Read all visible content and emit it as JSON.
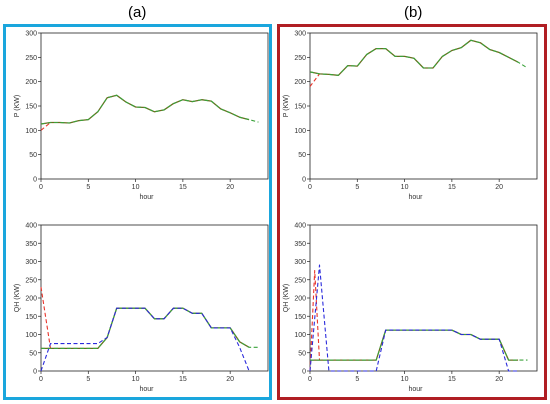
{
  "figure": {
    "panels": [
      {
        "label": "(a)",
        "frame_color": "#1aa6dd"
      },
      {
        "label": "(b)",
        "frame_color": "#b01e23"
      }
    ]
  },
  "colors": {
    "olive": "#6b6b1e",
    "red": "#e8332a",
    "green": "#3aa23a",
    "blue": "#2b2bdc"
  },
  "chart_data": [
    {
      "id": "a-top",
      "type": "line",
      "panel": "(a)",
      "xlabel": "hour",
      "ylabel": "P (KW)",
      "xlim": [
        0,
        24
      ],
      "ylim": [
        0,
        300
      ],
      "xticks": [
        0,
        5,
        10,
        15,
        20
      ],
      "yticks": [
        0,
        50,
        100,
        150,
        200,
        250,
        300
      ],
      "series": [
        {
          "style": "solid",
          "color": "olive",
          "x": [
            0,
            1,
            2,
            3,
            4,
            5,
            6,
            7,
            8,
            9,
            10,
            11,
            12,
            13,
            14,
            15,
            16,
            17,
            18,
            19,
            20,
            21,
            22
          ],
          "y": [
            113,
            116,
            116,
            115,
            120,
            122,
            138,
            167,
            172,
            158,
            148,
            147,
            138,
            142,
            155,
            163,
            159,
            163,
            160,
            144,
            136,
            127,
            122
          ]
        },
        {
          "style": "dashed",
          "color": "red",
          "x": [
            0,
            1
          ],
          "y": [
            100,
            116
          ]
        },
        {
          "style": "dashed",
          "color": "green",
          "x": [
            0,
            1,
            2,
            3,
            4,
            5,
            6,
            7,
            8,
            9,
            10,
            11,
            12,
            13,
            14,
            15,
            16,
            17,
            18,
            19,
            20,
            21,
            22,
            23
          ],
          "y": [
            113,
            116,
            116,
            115,
            120,
            122,
            138,
            167,
            172,
            158,
            148,
            147,
            138,
            142,
            155,
            163,
            159,
            163,
            160,
            144,
            136,
            127,
            122,
            117
          ]
        }
      ]
    },
    {
      "id": "a-bottom",
      "type": "line",
      "panel": "(a)",
      "xlabel": "hour",
      "ylabel": "QH (KW)",
      "xlim": [
        0,
        24
      ],
      "ylim": [
        0,
        400
      ],
      "xticks": [
        0,
        5,
        10,
        15,
        20
      ],
      "yticks": [
        0,
        50,
        100,
        150,
        200,
        250,
        300,
        350,
        400
      ],
      "series": [
        {
          "style": "solid",
          "color": "olive",
          "x": [
            0,
            1,
            2,
            3,
            4,
            5,
            6,
            7,
            8,
            9,
            10,
            11,
            12,
            13,
            14,
            15,
            16,
            17,
            18,
            19,
            20,
            21,
            22
          ],
          "y": [
            62,
            62,
            62,
            62,
            62,
            62,
            62,
            92,
            172,
            172,
            172,
            172,
            143,
            143,
            172,
            172,
            158,
            158,
            118,
            118,
            118,
            80,
            65
          ]
        },
        {
          "style": "dashed",
          "color": "red",
          "x": [
            0,
            1
          ],
          "y": [
            230,
            62
          ]
        },
        {
          "style": "dashed",
          "color": "green",
          "x": [
            0,
            1,
            2,
            3,
            4,
            5,
            6,
            7,
            8,
            9,
            10,
            11,
            12,
            13,
            14,
            15,
            16,
            17,
            18,
            19,
            20,
            21,
            22,
            23
          ],
          "y": [
            62,
            62,
            62,
            62,
            62,
            62,
            62,
            92,
            172,
            172,
            172,
            172,
            143,
            143,
            172,
            172,
            158,
            158,
            118,
            118,
            118,
            80,
            65,
            65
          ]
        },
        {
          "style": "dashed",
          "color": "blue",
          "x": [
            0,
            1,
            2,
            3,
            4,
            5,
            6,
            7,
            8,
            9,
            10,
            11,
            12,
            13,
            14,
            15,
            16,
            17,
            18,
            19,
            20,
            21,
            22
          ],
          "y": [
            0,
            75,
            75,
            75,
            75,
            75,
            75,
            92,
            172,
            172,
            172,
            172,
            143,
            143,
            172,
            172,
            158,
            158,
            118,
            118,
            118,
            65,
            0
          ]
        }
      ]
    },
    {
      "id": "b-top",
      "type": "line",
      "panel": "(b)",
      "xlabel": "hour",
      "ylabel": "P (KW)",
      "xlim": [
        0,
        24
      ],
      "ylim": [
        0,
        300
      ],
      "xticks": [
        0,
        5,
        10,
        15,
        20
      ],
      "yticks": [
        0,
        50,
        100,
        150,
        200,
        250,
        300
      ],
      "series": [
        {
          "style": "solid",
          "color": "olive",
          "x": [
            0,
            1,
            2,
            3,
            4,
            5,
            6,
            7,
            8,
            9,
            10,
            11,
            12,
            13,
            14,
            15,
            16,
            17,
            18,
            19,
            20,
            21,
            22
          ],
          "y": [
            220,
            216,
            215,
            213,
            233,
            232,
            256,
            268,
            268,
            252,
            252,
            248,
            228,
            228,
            252,
            264,
            270,
            285,
            280,
            266,
            260,
            250,
            240
          ]
        },
        {
          "style": "dashed",
          "color": "red",
          "x": [
            0,
            1
          ],
          "y": [
            190,
            216
          ]
        },
        {
          "style": "dashed",
          "color": "green",
          "x": [
            0,
            1,
            2,
            3,
            4,
            5,
            6,
            7,
            8,
            9,
            10,
            11,
            12,
            13,
            14,
            15,
            16,
            17,
            18,
            19,
            20,
            21,
            22,
            23
          ],
          "y": [
            220,
            216,
            215,
            213,
            233,
            232,
            256,
            268,
            268,
            252,
            252,
            248,
            228,
            228,
            252,
            264,
            270,
            285,
            280,
            266,
            260,
            250,
            240,
            228
          ]
        }
      ]
    },
    {
      "id": "b-bottom",
      "type": "line",
      "panel": "(b)",
      "xlabel": "hour",
      "ylabel": "QH (KW)",
      "xlim": [
        0,
        24
      ],
      "ylim": [
        0,
        400
      ],
      "xticks": [
        0,
        5,
        10,
        15,
        20
      ],
      "yticks": [
        0,
        50,
        100,
        150,
        200,
        250,
        300,
        350,
        400
      ],
      "series": [
        {
          "style": "solid",
          "color": "olive",
          "x": [
            0,
            1,
            2,
            3,
            4,
            5,
            6,
            7,
            8,
            9,
            10,
            11,
            12,
            13,
            14,
            15,
            16,
            17,
            18,
            19,
            20,
            21,
            22
          ],
          "y": [
            30,
            30,
            30,
            30,
            30,
            30,
            30,
            30,
            112,
            112,
            112,
            112,
            112,
            112,
            112,
            112,
            100,
            100,
            87,
            87,
            87,
            30,
            30
          ]
        },
        {
          "style": "dashed",
          "color": "red",
          "x": [
            0,
            0.5,
            1
          ],
          "y": [
            0,
            275,
            30
          ]
        },
        {
          "style": "dashed",
          "color": "green",
          "x": [
            0,
            1,
            2,
            3,
            4,
            5,
            6,
            7,
            8,
            9,
            10,
            11,
            12,
            13,
            14,
            15,
            16,
            17,
            18,
            19,
            20,
            21,
            22,
            23
          ],
          "y": [
            30,
            30,
            30,
            30,
            30,
            30,
            30,
            30,
            112,
            112,
            112,
            112,
            112,
            112,
            112,
            112,
            100,
            100,
            87,
            87,
            87,
            30,
            30,
            30
          ]
        },
        {
          "style": "dashed",
          "color": "blue",
          "x": [
            0,
            1,
            2,
            3,
            4,
            5,
            6,
            7,
            8,
            9,
            10,
            11,
            12,
            13,
            14,
            15,
            16,
            17,
            18,
            19,
            20,
            21,
            22
          ],
          "y": [
            0,
            290,
            0,
            0,
            0,
            0,
            0,
            0,
            112,
            112,
            112,
            112,
            112,
            112,
            112,
            112,
            100,
            100,
            87,
            87,
            87,
            0,
            0
          ]
        }
      ]
    }
  ]
}
